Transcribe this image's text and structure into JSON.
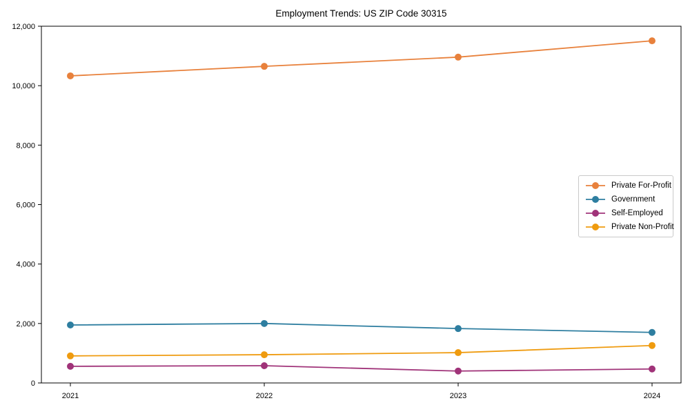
{
  "chart_data": {
    "type": "line",
    "title": "Employment Trends: US ZIP Code 30315",
    "x": [
      2021,
      2022,
      2023,
      2024
    ],
    "series": [
      {
        "name": "Private For-Profit",
        "color": "#E8813C",
        "values": [
          10330,
          10650,
          10960,
          11510
        ]
      },
      {
        "name": "Government",
        "color": "#2E7EA0",
        "values": [
          1950,
          2000,
          1830,
          1700
        ]
      },
      {
        "name": "Self-Employed",
        "color": "#A03379",
        "values": [
          560,
          580,
          400,
          470
        ]
      },
      {
        "name": "Private Non-Profit",
        "color": "#EF9B0F",
        "values": [
          910,
          950,
          1020,
          1260
        ]
      }
    ],
    "xlabel": "",
    "ylabel": "",
    "ylim": [
      0,
      12000
    ],
    "yticks": [
      0,
      2000,
      4000,
      6000,
      8000,
      10000,
      12000
    ],
    "xticks": [
      "2021",
      "2022",
      "2023",
      "2024"
    ],
    "grid": false,
    "legend_position": "center right",
    "marker": "circle",
    "axis_color": "#000000",
    "background_color": "#ffffff"
  }
}
